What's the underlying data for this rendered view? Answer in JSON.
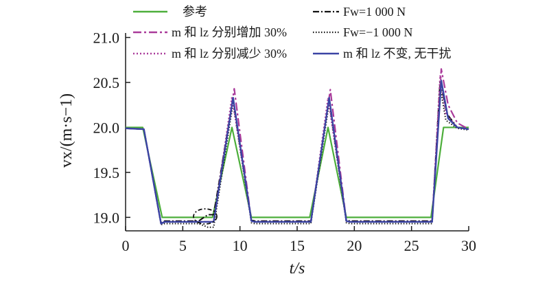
{
  "colors": {
    "reference": "#4cae3a",
    "increase": "#a93a9a",
    "decrease": "#a93a9a",
    "wind_pos": "#111111",
    "wind_neg": "#111111",
    "nominal": "#3a44a4",
    "axis": "#1a1a1a"
  },
  "chart_data": {
    "type": "line",
    "xlabel": "t/s",
    "ylabel": "vx/(m·s−1)",
    "xlim": [
      0,
      30
    ],
    "ylim": [
      18.85,
      21.05
    ],
    "x_ticks": [
      "0",
      "5",
      "10",
      "15",
      "20",
      "25",
      "30"
    ],
    "y_ticks": [
      "19.0",
      "19.5",
      "20.0",
      "20.5",
      "21.0"
    ],
    "grid": false,
    "legend_position": "top",
    "series": [
      {
        "name": "参考",
        "style": "solid",
        "x": [
          0,
          1.5,
          3.2,
          7.6,
          9.3,
          11.0,
          16.1,
          17.7,
          19.3,
          26.7,
          27.8,
          30
        ],
        "y": [
          20.0,
          20.0,
          19.0,
          19.0,
          20.0,
          19.0,
          19.0,
          20.0,
          19.0,
          19.0,
          20.0,
          20.0
        ]
      },
      {
        "name": "m 和 lz 分别增加 30%",
        "style": "dashdot",
        "x": [
          0,
          1.6,
          3.1,
          3.4,
          7.7,
          9.5,
          11.0,
          11.3,
          16.2,
          17.9,
          19.3,
          19.6,
          26.8,
          27.6,
          28.2,
          29.0,
          30
        ],
        "y": [
          19.99,
          19.98,
          18.93,
          18.95,
          18.95,
          20.43,
          18.96,
          18.95,
          18.95,
          20.42,
          18.96,
          18.95,
          18.95,
          20.65,
          20.25,
          20.05,
          19.98
        ]
      },
      {
        "name": "m 和 lz 分别减少 30%",
        "style": "dotted",
        "x": [
          0,
          1.6,
          3.1,
          3.4,
          7.7,
          9.3,
          11.0,
          11.3,
          16.2,
          17.7,
          19.3,
          19.6,
          26.8,
          27.5,
          28.0,
          29.0,
          30
        ],
        "y": [
          19.99,
          19.98,
          18.93,
          18.95,
          18.95,
          20.34,
          18.96,
          18.95,
          18.95,
          20.33,
          18.96,
          18.95,
          18.95,
          20.58,
          20.15,
          20.0,
          19.98
        ]
      },
      {
        "name": "Fw=1 000 N",
        "style": "dashdot-dense",
        "x": [
          0,
          1.6,
          3.1,
          3.4,
          6.4,
          7.2,
          7.7,
          9.4,
          11.0,
          11.3,
          16.2,
          17.8,
          19.3,
          19.6,
          26.8,
          27.5,
          28.1,
          29.0,
          30
        ],
        "y": [
          19.99,
          19.98,
          18.94,
          18.96,
          18.96,
          19.03,
          19.03,
          20.33,
          18.97,
          18.96,
          18.96,
          20.33,
          18.97,
          18.96,
          18.96,
          20.52,
          20.15,
          20.0,
          19.98
        ]
      },
      {
        "name": "Fw=−1 000 N",
        "style": "dotted-dense",
        "x": [
          0,
          1.6,
          3.1,
          3.4,
          6.4,
          7.2,
          7.7,
          9.4,
          11.0,
          11.3,
          16.2,
          17.8,
          19.3,
          19.6,
          26.8,
          27.5,
          28.0,
          29.0,
          30
        ],
        "y": [
          19.99,
          19.98,
          18.92,
          18.93,
          18.93,
          18.89,
          18.89,
          20.27,
          18.94,
          18.93,
          18.93,
          20.27,
          18.94,
          18.93,
          18.93,
          20.45,
          20.08,
          19.99,
          19.97
        ]
      },
      {
        "name": "m 和 lz 不变, 无干扰",
        "style": "solid",
        "x": [
          0,
          1.6,
          3.1,
          3.4,
          7.7,
          9.4,
          11.0,
          11.3,
          16.2,
          17.8,
          19.3,
          19.6,
          26.8,
          27.6,
          28.2,
          29.0,
          30
        ],
        "y": [
          19.99,
          19.98,
          18.93,
          18.95,
          18.95,
          20.33,
          18.96,
          18.95,
          18.95,
          20.33,
          18.96,
          18.95,
          18.95,
          20.52,
          20.1,
          20.0,
          19.98
        ]
      }
    ]
  }
}
